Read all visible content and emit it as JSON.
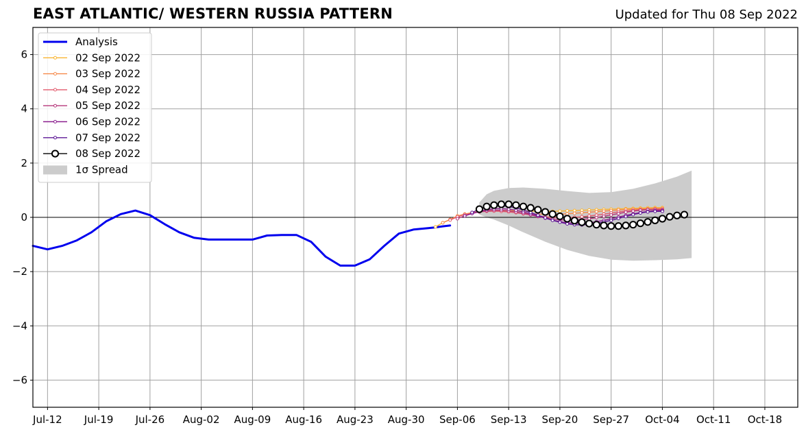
{
  "title": "EAST ATLANTIC/ WESTERN RUSSIA PATTERN",
  "subtitle": "Updated for Thu 08 Sep 2022",
  "chart_data": {
    "type": "line",
    "title": "EAST ATLANTIC/ WESTERN RUSSIA PATTERN",
    "x_start": "2022-07-10",
    "x_axis": {
      "range": [
        "2022-07-10",
        "2022-10-23"
      ],
      "tick_labels": [
        "Jul-12",
        "Jul-19",
        "Jul-26",
        "Aug-02",
        "Aug-09",
        "Aug-16",
        "Aug-23",
        "Aug-30",
        "Sep-06",
        "Sep-13",
        "Sep-20",
        "Sep-27",
        "Oct-04",
        "Oct-11",
        "Oct-18"
      ],
      "tick_days": [
        2,
        9,
        16,
        23,
        30,
        37,
        44,
        51,
        58,
        65,
        72,
        79,
        86,
        93,
        100
      ],
      "range_days": [
        0,
        104.5
      ]
    },
    "y_axis": {
      "range": [
        -7,
        7
      ],
      "ticks": [
        6,
        4,
        2,
        0,
        -2,
        -4,
        -6
      ],
      "tick_labels": [
        "6",
        "4",
        "2",
        "0",
        "−2",
        "−4",
        "−6"
      ]
    },
    "grid": true,
    "legend_position": "top-left",
    "analysis": {
      "name": "Analysis",
      "color": "#0000ee",
      "x": [
        0,
        2,
        4,
        6,
        8,
        10,
        12,
        14,
        16,
        18,
        20,
        22,
        24,
        26,
        28,
        30,
        32,
        34,
        36,
        38,
        40,
        42,
        44,
        46,
        48,
        50,
        52,
        54,
        55,
        56,
        57
      ],
      "y": [
        -1.05,
        -1.18,
        -1.05,
        -0.85,
        -0.55,
        -0.15,
        0.12,
        0.25,
        0.08,
        -0.25,
        -0.55,
        -0.75,
        -0.82,
        -0.82,
        -0.82,
        -0.82,
        -0.67,
        -0.65,
        -0.65,
        -0.9,
        -1.45,
        -1.78,
        -1.78,
        -1.55,
        -1.05,
        -0.6,
        -0.45,
        -0.4,
        -0.37,
        -0.33,
        -0.3
      ]
    },
    "forecasts": [
      {
        "name": "02 Sep 2022",
        "color": "#f9b531",
        "start_day": 55,
        "values": [
          -0.35,
          -0.2,
          -0.08,
          0.05,
          0.12,
          0.18,
          0.22,
          0.25,
          0.26,
          0.26,
          0.25,
          0.24,
          0.23,
          0.23,
          0.22,
          0.22,
          0.22,
          0.23,
          0.24,
          0.25,
          0.26,
          0.27,
          0.28,
          0.29,
          0.3,
          0.31,
          0.32,
          0.33,
          0.34,
          0.35,
          0.36,
          0.36
        ]
      },
      {
        "name": "03 Sep 2022",
        "color": "#f6894a",
        "start_day": 56,
        "values": [
          -0.2,
          -0.08,
          0.05,
          0.12,
          0.17,
          0.21,
          0.23,
          0.24,
          0.23,
          0.21,
          0.18,
          0.15,
          0.13,
          0.12,
          0.11,
          0.11,
          0.12,
          0.13,
          0.15,
          0.17,
          0.19,
          0.21,
          0.23,
          0.25,
          0.27,
          0.29,
          0.3,
          0.31,
          0.32,
          0.33,
          0.33
        ]
      },
      {
        "name": "04 Sep 2022",
        "color": "#e2596c",
        "start_day": 57,
        "values": [
          -0.1,
          0.02,
          0.1,
          0.16,
          0.2,
          0.22,
          0.23,
          0.22,
          0.2,
          0.17,
          0.13,
          0.09,
          0.05,
          0.02,
          0.0,
          -0.01,
          -0.01,
          0.0,
          0.02,
          0.05,
          0.08,
          0.12,
          0.16,
          0.2,
          0.23,
          0.26,
          0.28,
          0.29,
          0.3,
          0.3
        ]
      },
      {
        "name": "05 Sep 2022",
        "color": "#b5367a",
        "start_day": 58,
        "values": [
          -0.05,
          0.06,
          0.14,
          0.2,
          0.24,
          0.26,
          0.26,
          0.24,
          0.2,
          0.15,
          0.09,
          0.03,
          -0.02,
          -0.06,
          -0.09,
          -0.1,
          -0.1,
          -0.08,
          -0.05,
          -0.01,
          0.04,
          0.09,
          0.14,
          0.19,
          0.23,
          0.26,
          0.28,
          0.28,
          0.27
        ]
      },
      {
        "name": "06 Sep 2022",
        "color": "#8a1c8e",
        "start_day": 59,
        "values": [
          0.05,
          0.14,
          0.22,
          0.28,
          0.31,
          0.32,
          0.3,
          0.26,
          0.2,
          0.13,
          0.05,
          -0.03,
          -0.1,
          -0.16,
          -0.2,
          -0.22,
          -0.22,
          -0.2,
          -0.16,
          -0.11,
          -0.05,
          0.01,
          0.07,
          0.13,
          0.18,
          0.22,
          0.24,
          0.25
        ]
      },
      {
        "name": "07 Sep 2022",
        "color": "#5c1796",
        "start_day": 60,
        "values": [
          0.18,
          0.3,
          0.38,
          0.42,
          0.43,
          0.4,
          0.35,
          0.27,
          0.18,
          0.08,
          -0.02,
          -0.11,
          -0.18,
          -0.24,
          -0.27,
          -0.28,
          -0.26,
          -0.22,
          -0.17,
          -0.11,
          -0.04,
          0.03,
          0.1,
          0.16,
          0.2,
          0.22,
          0.22
        ]
      },
      {
        "name": "08 Sep 2022",
        "color": "#000000",
        "start_day": 61,
        "values": [
          0.3,
          0.4,
          0.45,
          0.48,
          0.48,
          0.45,
          0.4,
          0.35,
          0.28,
          0.2,
          0.12,
          0.04,
          -0.05,
          -0.12,
          -0.18,
          -0.23,
          -0.27,
          -0.3,
          -0.32,
          -0.32,
          -0.3,
          -0.27,
          -0.22,
          -0.17,
          -0.11,
          -0.05,
          0.02,
          0.07,
          0.1
        ]
      }
    ],
    "spread": {
      "name": "1σ Spread",
      "color": "#cccccc",
      "x": [
        61,
        62,
        63,
        65,
        67,
        70,
        73,
        76,
        79,
        82,
        85,
        88,
        90
      ],
      "upper": [
        0.55,
        0.85,
        0.98,
        1.08,
        1.1,
        1.05,
        0.97,
        0.9,
        0.93,
        1.05,
        1.25,
        1.5,
        1.72
      ],
      "lower": [
        0.1,
        0.0,
        -0.08,
        -0.3,
        -0.55,
        -0.9,
        -1.2,
        -1.42,
        -1.56,
        -1.6,
        -1.58,
        -1.55,
        -1.5
      ]
    }
  }
}
